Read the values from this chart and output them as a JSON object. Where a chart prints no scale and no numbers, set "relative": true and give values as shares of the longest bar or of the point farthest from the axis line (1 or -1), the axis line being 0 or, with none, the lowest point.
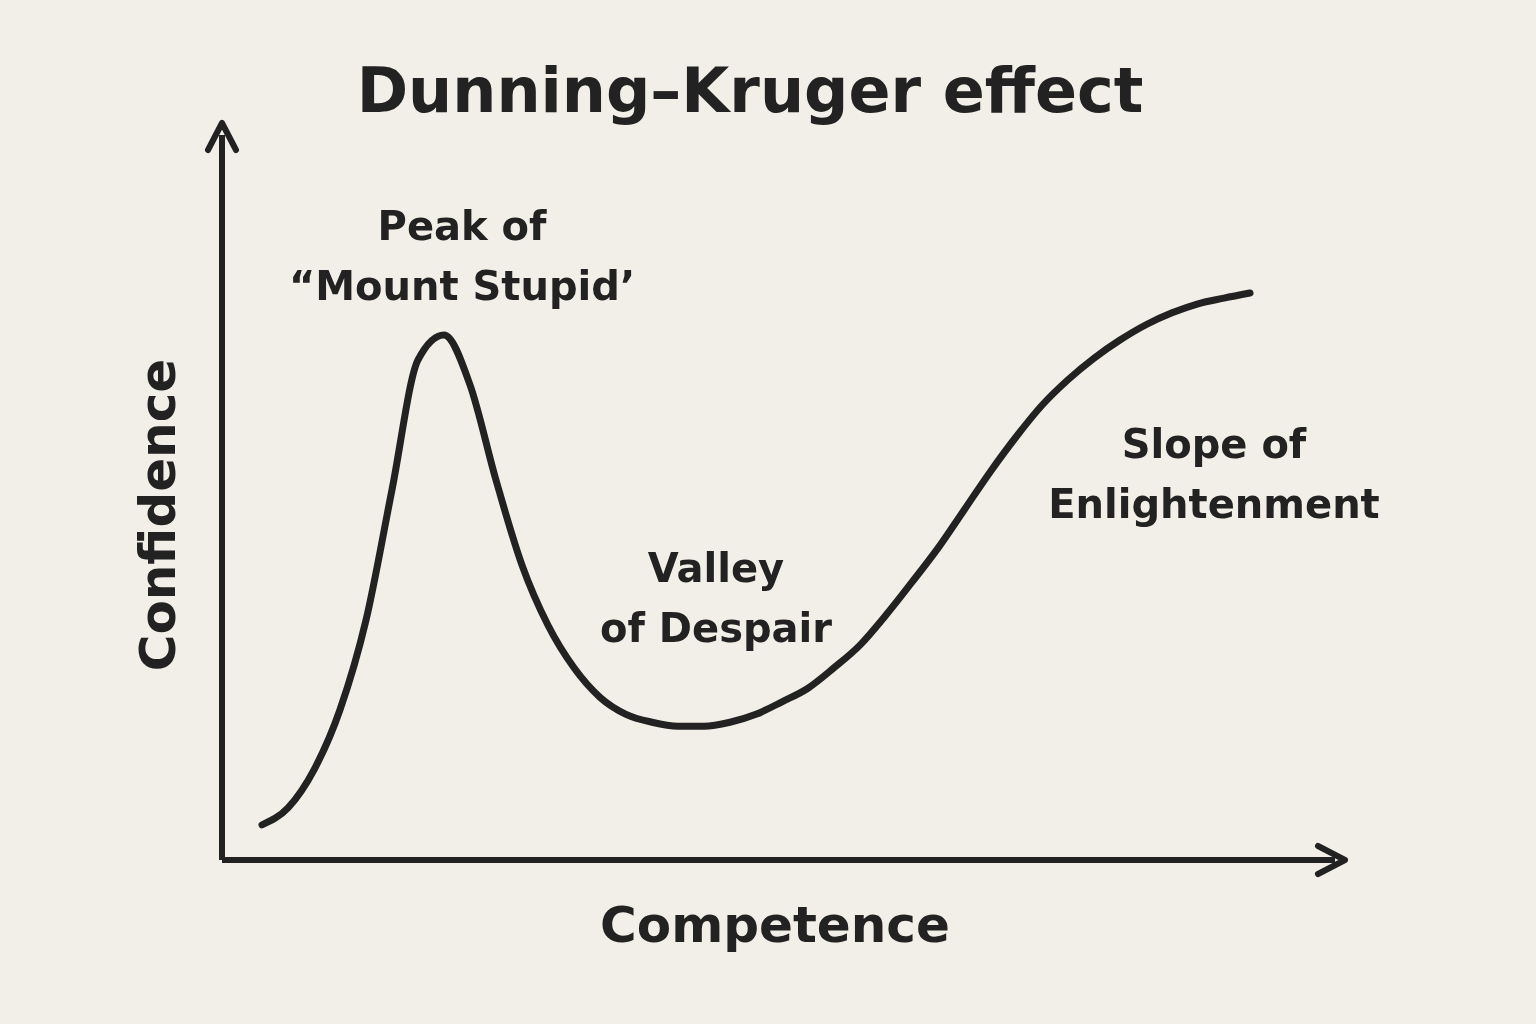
{
  "chart_data": {
    "type": "line",
    "title": "Dunning–Kruger effect",
    "xlabel": "Competence",
    "ylabel": "Confidence",
    "relative": true,
    "categories": [
      null,
      null,
      null,
      null,
      null,
      null,
      null,
      null,
      null,
      null,
      null,
      null,
      null,
      null,
      null,
      null,
      null,
      null,
      null,
      null,
      null,
      null,
      null,
      null,
      null,
      null,
      null,
      null,
      null,
      null,
      null,
      null,
      null,
      null,
      null,
      null,
      null,
      null,
      null
    ],
    "series": [
      {
        "color": "#222222",
        "values": [
          0.062,
          0.092,
          0.159,
          0.265,
          0.423,
          0.653,
          0.882,
          0.926,
          0.838,
          0.67,
          0.52,
          0.414,
          0.339,
          0.287,
          0.257,
          0.243,
          0.236,
          0.236,
          0.243,
          0.257,
          0.279,
          0.303,
          0.339,
          0.379,
          0.432,
          0.49,
          0.55,
          0.617,
          0.684,
          0.746,
          0.802,
          0.847,
          0.885,
          0.917,
          0.944,
          0.965,
          0.981,
          0.991,
          1
        ]
      }
    ],
    "annotations": [
      "Peak of\n“Mount Stupid’",
      "Valley\nof Despair",
      "Slope of\nEnlightenment"
    ],
    "grid": false,
    "marker": "none",
    "line_style": "solid"
  }
}
